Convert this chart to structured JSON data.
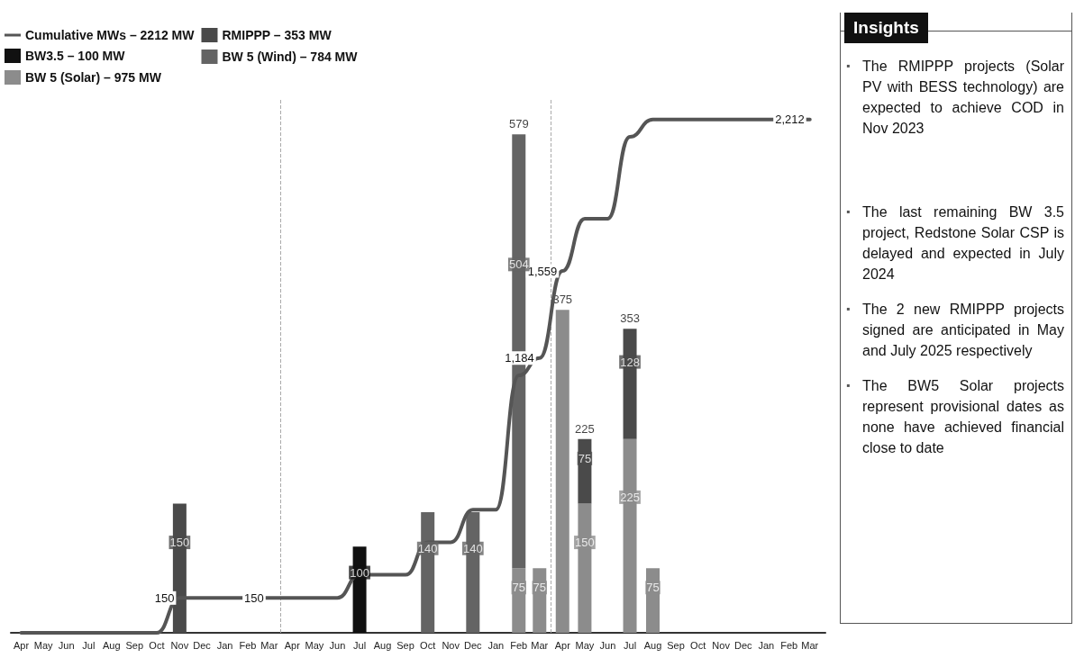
{
  "chart_data": [
    {
      "type": "bar",
      "stacked": true,
      "x": [
        "2023-04",
        "2023-05",
        "2023-06",
        "2023-07",
        "2023-08",
        "2023-09",
        "2023-10",
        "2023-11",
        "2023-12",
        "2024-01",
        "2024-02",
        "2024-03",
        "2024-04",
        "2024-05",
        "2024-06",
        "2024-07",
        "2024-08",
        "2024-09",
        "2024-10",
        "2024-11",
        "2024-12",
        "2025-01",
        "2025-02",
        "2025-03",
        "2025-04",
        "2025-05",
        "2025-06",
        "2025-07",
        "2025-08",
        "2025-09",
        "2025-10",
        "2025-11",
        "2025-12",
        "2026-01",
        "2026-02",
        "2026-03"
      ],
      "xlim": [
        "2023-03-18",
        "2026-03-22"
      ],
      "xticks": [
        {
          "value": "2023-04",
          "label": "Apr"
        },
        {
          "value": "2023-05",
          "label": "May"
        },
        {
          "value": "2023-06",
          "label": "Jun"
        },
        {
          "value": "2023-07",
          "label": "Jul"
        },
        {
          "value": "2023-08",
          "label": "Aug"
        },
        {
          "value": "2023-09",
          "label": "Sep"
        },
        {
          "value": "2023-10",
          "label": "Oct"
        },
        {
          "value": "2023-11",
          "label": "Nov"
        },
        {
          "value": "2023-12",
          "label": "Dec"
        },
        {
          "value": "2024-01",
          "label": "Jan"
        },
        {
          "value": "2024-02",
          "label": "Feb"
        },
        {
          "value": "2024-03",
          "label": "Mar"
        },
        {
          "value": "2024-04",
          "label": "Apr"
        },
        {
          "value": "2024-05",
          "label": "May"
        },
        {
          "value": "2024-06",
          "label": "Jun"
        },
        {
          "value": "2024-07",
          "label": "Jul"
        },
        {
          "value": "2024-08",
          "label": "Aug"
        },
        {
          "value": "2024-09",
          "label": "Sep"
        },
        {
          "value": "2024-10",
          "label": "Oct"
        },
        {
          "value": "2024-11",
          "label": "Nov"
        },
        {
          "value": "2024-12",
          "label": "Dec"
        },
        {
          "value": "2025-01",
          "label": "Jan"
        },
        {
          "value": "2025-02",
          "label": "Feb"
        },
        {
          "value": "2025-03",
          "label": "Mar"
        },
        {
          "value": "2025-04",
          "label": "Apr"
        },
        {
          "value": "2025-05",
          "label": "May"
        },
        {
          "value": "2025-06",
          "label": "Jun"
        },
        {
          "value": "2025-07",
          "label": "Jul"
        },
        {
          "value": "2025-08",
          "label": "Aug"
        },
        {
          "value": "2025-09",
          "label": "Sep"
        },
        {
          "value": "2025-10",
          "label": "Oct"
        },
        {
          "value": "2025-11",
          "label": "Nov"
        },
        {
          "value": "2025-12",
          "label": "Dec"
        },
        {
          "value": "2026-01",
          "label": "Jan"
        },
        {
          "value": "2026-02",
          "label": "Feb"
        },
        {
          "value": "2026-03",
          "label": "Mar"
        }
      ],
      "ylim": [
        0,
        620
      ],
      "y2lim": [
        0,
        2300
      ],
      "tick_labels": "x",
      "grid": false,
      "legend": "top left",
      "marker": "none",
      "line_style": "solid",
      "series": [
        {
          "name": "Cumulative MWs – 2212 MW",
          "type": "line",
          "axis": "y2",
          "color": "#555555",
          "values": [
            0,
            0,
            0,
            0,
            0,
            0,
            0,
            150,
            150,
            150,
            150,
            150,
            150,
            150,
            150,
            250,
            250,
            250,
            390,
            390,
            530,
            530,
            1109,
            1184,
            1559,
            1784,
            1784,
            2137,
            2212,
            2212,
            2212,
            2212,
            2212,
            2212,
            2212,
            2212
          ],
          "value_labels": [
            null,
            null,
            null,
            null,
            null,
            null,
            null,
            "150",
            null,
            null,
            null,
            "150",
            null,
            null,
            null,
            null,
            null,
            null,
            null,
            null,
            null,
            null,
            null,
            "1,184",
            "1,559",
            null,
            null,
            null,
            null,
            null,
            null,
            null,
            null,
            null,
            null,
            "2,212"
          ]
        },
        {
          "name": "BW3.5 – 100 MW",
          "color": "#111111",
          "values": [
            null,
            null,
            null,
            null,
            null,
            null,
            null,
            null,
            null,
            null,
            null,
            null,
            null,
            null,
            null,
            100,
            null,
            null,
            null,
            null,
            null,
            null,
            null,
            null,
            null,
            null,
            null,
            null,
            null,
            null,
            null,
            null,
            null,
            null,
            null,
            null
          ],
          "value_labels": [
            null,
            null,
            null,
            null,
            null,
            null,
            null,
            null,
            null,
            null,
            null,
            null,
            null,
            null,
            null,
            "100",
            null,
            null,
            null,
            null,
            null,
            null,
            null,
            null,
            null,
            null,
            null,
            null,
            null,
            null,
            null,
            null,
            null,
            null,
            null,
            null
          ]
        },
        {
          "name": "BW 5 (Solar) – 975 MW",
          "color": "#8c8c8c",
          "values": [
            null,
            null,
            null,
            null,
            null,
            null,
            null,
            null,
            null,
            null,
            null,
            null,
            null,
            null,
            null,
            null,
            null,
            null,
            null,
            null,
            null,
            null,
            75,
            75,
            375,
            150,
            null,
            225,
            75,
            null,
            null,
            null,
            null,
            null,
            null,
            null
          ],
          "value_labels": [
            null,
            null,
            null,
            null,
            null,
            null,
            null,
            null,
            null,
            null,
            null,
            null,
            null,
            null,
            null,
            null,
            null,
            null,
            null,
            null,
            null,
            null,
            "75",
            "75",
            null,
            "150",
            null,
            "225",
            "75",
            null,
            null,
            null,
            null,
            null,
            null,
            null
          ]
        },
        {
          "name": "RMIPPP – 353 MW",
          "color": "#4a4a4a",
          "values": [
            null,
            null,
            null,
            null,
            null,
            null,
            null,
            150,
            null,
            null,
            null,
            null,
            null,
            null,
            null,
            null,
            null,
            null,
            null,
            null,
            null,
            null,
            null,
            null,
            null,
            75,
            null,
            128,
            null,
            null,
            null,
            null,
            null,
            null,
            null,
            null
          ],
          "value_labels": [
            null,
            null,
            null,
            null,
            null,
            null,
            null,
            "150",
            null,
            null,
            null,
            null,
            null,
            null,
            null,
            null,
            null,
            null,
            null,
            null,
            null,
            null,
            null,
            null,
            null,
            "75",
            null,
            "128",
            null,
            null,
            null,
            null,
            null,
            null,
            null,
            null
          ]
        },
        {
          "name": "BW 5 (Wind) – 784 MW",
          "color": "#646464",
          "values": [
            null,
            null,
            null,
            null,
            null,
            null,
            null,
            null,
            null,
            null,
            null,
            null,
            null,
            null,
            null,
            null,
            null,
            null,
            140,
            null,
            140,
            null,
            504,
            null,
            null,
            null,
            null,
            null,
            null,
            null,
            null,
            null,
            null,
            null,
            null,
            null
          ],
          "value_labels": [
            null,
            null,
            null,
            null,
            null,
            null,
            null,
            null,
            null,
            null,
            null,
            null,
            null,
            null,
            null,
            null,
            null,
            null,
            "140",
            null,
            "140",
            null,
            "504",
            null,
            null,
            null,
            null,
            null,
            null,
            null,
            null,
            null,
            null,
            null,
            null,
            null
          ]
        }
      ],
      "totals": [
        null,
        null,
        null,
        null,
        null,
        null,
        null,
        null,
        null,
        null,
        null,
        null,
        null,
        null,
        null,
        null,
        null,
        null,
        null,
        null,
        null,
        null,
        "579",
        null,
        "375",
        "225",
        null,
        "353",
        null,
        null,
        null,
        null,
        null,
        null,
        null,
        null
      ],
      "ref_lines": [
        {
          "axis": "x",
          "value": "2024-03-16",
          "line_style": "dashed",
          "color": "#aaaaaa"
        },
        {
          "axis": "x",
          "value": "2025-03-16",
          "line_style": "dashed",
          "color": "#aaaaaa"
        }
      ]
    },
    {
      "type": "other",
      "title": "Insights",
      "annotations": [
        "▪ The RMIPPP projects (Solar PV with BESS technology) are expected  to achieve COD in Nov 2023",
        "▪ The last remaining BW 3.5 project, Redstone Solar CSP is delayed and expected in July 2024",
        "▪ The 2 new RMIPPP projects signed are anticipated in May and July 2025 respectively",
        "▪ The BW5 Solar projects represent provisional dates as none have achieved financial close to date"
      ]
    }
  ]
}
